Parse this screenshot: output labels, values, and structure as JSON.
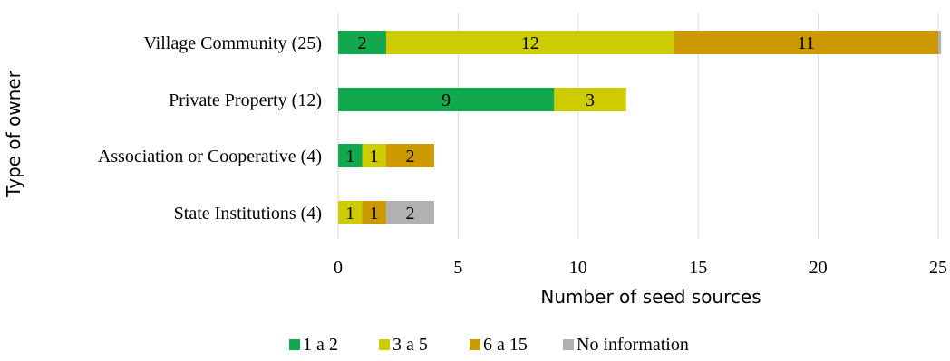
{
  "chart_data": {
    "type": "bar",
    "orientation": "horizontal",
    "stacked": true,
    "title": "",
    "xlabel": "Number of seed sources",
    "ylabel": "Type of owner",
    "xlim": [
      0,
      25
    ],
    "xticks": [
      "0",
      "5",
      "10",
      "15",
      "20",
      "25"
    ],
    "grid": "vertical",
    "legend": "bottom",
    "categories": [
      "Village Community (25)",
      "Private Property (12)",
      "Association or Cooperative (4)",
      "State Institutions (4)"
    ],
    "series": [
      {
        "name": "1 a 2",
        "color": "#12a84e",
        "values": [
          2,
          9,
          1,
          0
        ]
      },
      {
        "name": "3 a 5",
        "color": "#cccc00",
        "values": [
          12,
          3,
          1,
          1
        ]
      },
      {
        "name": "6 a 15",
        "color": "#cc9900",
        "values": [
          11,
          0,
          2,
          1
        ]
      },
      {
        "name": "No information",
        "color": "#b3b0b0",
        "values": [
          0.12,
          0,
          0,
          2
        ]
      }
    ],
    "data_labels": [
      [
        "2",
        "12",
        "11",
        ""
      ],
      [
        "9",
        "3",
        "",
        ""
      ],
      [
        "1",
        "1",
        "2",
        ""
      ],
      [
        "",
        "1",
        "1",
        "2"
      ]
    ]
  }
}
